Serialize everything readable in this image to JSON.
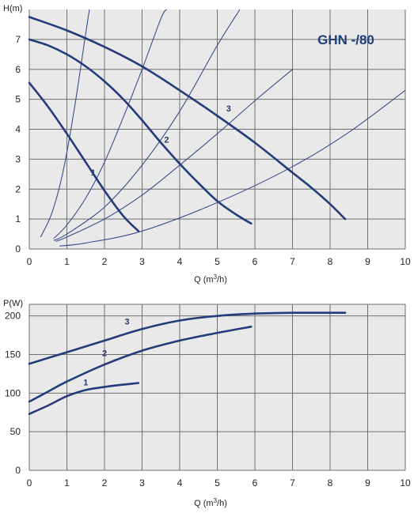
{
  "chart_data": [
    {
      "type": "line",
      "title": "GHN -/80",
      "xlabel": "Q (m³/h)",
      "ylabel": "H(m)",
      "xlim": [
        0,
        10
      ],
      "ylim": [
        0,
        8
      ],
      "xticks": [
        "0",
        "1",
        "2",
        "3",
        "4",
        "5",
        "6",
        "7",
        "8",
        "9",
        "10"
      ],
      "yticks": [
        "0",
        "1",
        "2",
        "3",
        "4",
        "5",
        "6",
        "7"
      ],
      "grid": true,
      "series": [
        {
          "name": "1",
          "x": [
            0,
            0.5,
            1.0,
            1.5,
            2.0,
            2.5,
            2.9
          ],
          "y": [
            5.55,
            4.75,
            3.85,
            2.9,
            1.95,
            1.1,
            0.6
          ]
        },
        {
          "name": "2",
          "x": [
            0,
            0.5,
            1.0,
            1.5,
            2.0,
            2.5,
            3.0,
            3.5,
            4.0,
            4.5,
            5.0,
            5.5,
            5.9
          ],
          "y": [
            7.0,
            6.8,
            6.5,
            6.1,
            5.6,
            5.0,
            4.3,
            3.55,
            2.85,
            2.2,
            1.6,
            1.15,
            0.85
          ]
        },
        {
          "name": "3",
          "x": [
            0,
            1,
            2,
            3,
            4,
            5,
            6,
            7,
            7.5,
            8.0,
            8.4
          ],
          "y": [
            7.75,
            7.3,
            6.75,
            6.1,
            5.3,
            4.45,
            3.55,
            2.55,
            2.05,
            1.5,
            1.0
          ]
        }
      ],
      "system_curves": [
        {
          "x": [
            0.3,
            0.6,
            0.9,
            1.2,
            1.5,
            1.6
          ],
          "y": [
            0.4,
            1.2,
            2.6,
            4.7,
            7.2,
            8.0
          ]
        },
        {
          "x": [
            0.65,
            1.0,
            1.5,
            2.0,
            2.5,
            3.0,
            3.5,
            3.65
          ],
          "y": [
            0.35,
            0.8,
            1.7,
            2.9,
            4.4,
            6.0,
            7.7,
            8.0
          ]
        },
        {
          "x": [
            0.65,
            1.0,
            2.0,
            3.0,
            4.0,
            5.0,
            5.6
          ],
          "y": [
            0.28,
            0.5,
            1.4,
            2.8,
            4.6,
            6.8,
            8.0
          ]
        },
        {
          "x": [
            0.7,
            1.0,
            2.0,
            3.0,
            4.0,
            5.0,
            6.0,
            7.0
          ],
          "y": [
            0.25,
            0.4,
            1.0,
            1.8,
            2.8,
            3.85,
            4.95,
            6.0
          ]
        },
        {
          "x": [
            0.8,
            1.5,
            3.0,
            5.0,
            7.0,
            8.5,
            10.0
          ],
          "y": [
            0.1,
            0.2,
            0.6,
            1.55,
            2.75,
            3.9,
            5.3
          ]
        }
      ]
    },
    {
      "type": "line",
      "title": "",
      "xlabel": "Q (m³/h)",
      "ylabel": "P(W)",
      "xlim": [
        0,
        10
      ],
      "ylim": [
        0,
        215
      ],
      "xticks": [
        "0",
        "1",
        "2",
        "3",
        "4",
        "5",
        "6",
        "7",
        "8",
        "9",
        "10"
      ],
      "yticks": [
        "0",
        "50",
        "100",
        "150",
        "200"
      ],
      "grid": true,
      "series": [
        {
          "name": "1",
          "x": [
            0,
            0.5,
            1.0,
            1.5,
            2.0,
            2.5,
            2.9
          ],
          "y": [
            73,
            84,
            96,
            104,
            108,
            111,
            113
          ]
        },
        {
          "name": "2",
          "x": [
            0,
            0.5,
            1.0,
            2.0,
            3.0,
            4.0,
            5.0,
            5.9
          ],
          "y": [
            89,
            102,
            115,
            137,
            155,
            168,
            178,
            186
          ]
        },
        {
          "name": "3",
          "x": [
            0,
            1.0,
            2.0,
            3.0,
            4.0,
            5.0,
            6.0,
            7.0,
            8.0,
            8.4
          ],
          "y": [
            138,
            153,
            168,
            183,
            194,
            200,
            203,
            204,
            204,
            204
          ]
        }
      ]
    }
  ],
  "colors": {
    "curve": "#253b7a",
    "system_curve": "#3a4f8c",
    "plot_bg": "#e9e9e9",
    "grid": "#6e6e6e",
    "title": "#1f3f7a"
  }
}
